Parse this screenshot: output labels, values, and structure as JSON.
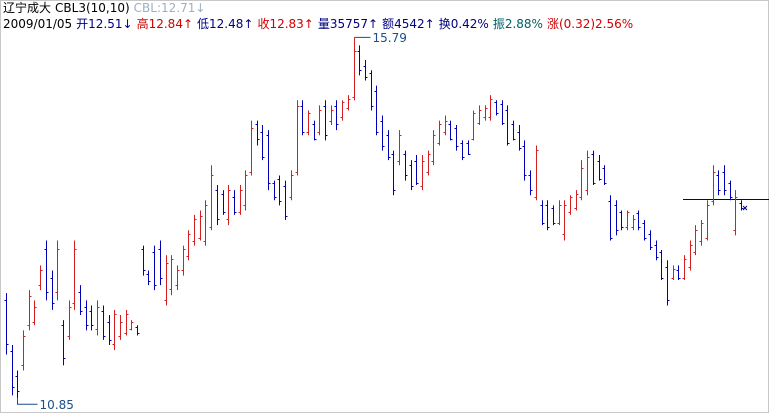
{
  "header": {
    "title": "辽宁成大",
    "indicator": "CBL3(10,10)",
    "indicator_value": "CBL:12.71↓",
    "date": "2009/01/05",
    "fields": [
      {
        "text": "开12.51↓",
        "color": "#000080"
      },
      {
        "text": "高12.84↑",
        "color": "#d00000"
      },
      {
        "text": "低12.48↑",
        "color": "#000080"
      },
      {
        "text": "收12.83↑",
        "color": "#d00000"
      },
      {
        "text": "量35757↑",
        "color": "#000080"
      },
      {
        "text": "额4542↑",
        "color": "#000080"
      },
      {
        "text": "换0.42%",
        "color": "#000080"
      },
      {
        "text": "振2.88%",
        "color": "#006060"
      },
      {
        "text": "涨(0.32)2.56%",
        "color": "#d00000"
      }
    ]
  },
  "chart_data": {
    "type": "ohlc",
    "up_color": "#d42020",
    "down_color": "#0000b4",
    "label_color": "#1a4f8a",
    "ylim": [
      10.69,
      15.85
    ],
    "ohlc": [
      [
        12.2,
        12.29,
        11.45,
        11.6
      ],
      [
        11.5,
        11.58,
        10.89,
        11.0
      ],
      [
        11.15,
        11.23,
        10.85,
        10.95
      ],
      [
        11.3,
        11.78,
        11.23,
        11.7
      ],
      [
        11.85,
        12.33,
        11.78,
        12.25
      ],
      [
        11.9,
        12.19,
        11.85,
        12.1
      ],
      [
        12.4,
        12.67,
        12.33,
        12.6
      ],
      [
        12.9,
        13.01,
        12.19,
        12.3
      ],
      [
        12.5,
        12.6,
        12.06,
        12.15
      ],
      [
        12.3,
        13.01,
        12.19,
        12.9
      ],
      [
        11.85,
        11.92,
        11.3,
        11.4
      ],
      [
        11.7,
        12.19,
        11.65,
        12.1
      ],
      [
        12.15,
        13.01,
        12.06,
        12.9
      ],
      [
        12.3,
        12.4,
        11.99,
        12.05
      ],
      [
        12.1,
        12.19,
        11.78,
        11.85
      ],
      [
        12.05,
        12.12,
        11.78,
        11.85
      ],
      [
        11.8,
        12.19,
        11.71,
        12.1
      ],
      [
        12.05,
        12.12,
        11.65,
        11.7
      ],
      [
        11.9,
        11.99,
        11.58,
        11.65
      ],
      [
        11.6,
        12.06,
        11.51,
        12.0
      ],
      [
        11.7,
        11.99,
        11.65,
        11.9
      ],
      [
        11.75,
        12.06,
        11.71,
        12.0
      ],
      [
        11.8,
        11.92,
        11.78,
        11.9
      ],
      [
        11.83,
        11.85,
        11.71,
        11.75
      ],
      [
        12.9,
        12.94,
        12.53,
        12.6
      ],
      [
        12.55,
        12.6,
        12.4,
        12.45
      ],
      [
        12.85,
        12.94,
        12.33,
        12.4
      ],
      [
        12.9,
        13.01,
        12.4,
        12.5
      ],
      [
        12.2,
        12.81,
        12.12,
        12.7
      ],
      [
        12.35,
        12.81,
        12.26,
        12.75
      ],
      [
        12.4,
        12.67,
        12.33,
        12.6
      ],
      [
        12.6,
        12.94,
        12.53,
        12.9
      ],
      [
        12.8,
        13.15,
        12.74,
        13.1
      ],
      [
        13.0,
        13.36,
        12.94,
        13.3
      ],
      [
        13.05,
        13.42,
        13.01,
        13.35
      ],
      [
        13.0,
        13.56,
        12.94,
        13.5
      ],
      [
        13.2,
        14.04,
        13.15,
        13.9
      ],
      [
        13.7,
        13.77,
        13.22,
        13.3
      ],
      [
        13.65,
        13.7,
        13.36,
        13.4
      ],
      [
        13.3,
        13.77,
        13.22,
        13.7
      ],
      [
        13.6,
        13.7,
        13.36,
        13.4
      ],
      [
        13.4,
        13.77,
        13.36,
        13.7
      ],
      [
        13.5,
        13.97,
        13.42,
        13.9
      ],
      [
        13.95,
        14.65,
        13.9,
        14.55
      ],
      [
        14.6,
        14.65,
        14.31,
        14.4
      ],
      [
        14.5,
        14.59,
        14.11,
        14.15
      ],
      [
        14.45,
        14.52,
        13.7,
        13.8
      ],
      [
        13.8,
        13.83,
        13.56,
        13.6
      ],
      [
        13.85,
        13.9,
        13.49,
        13.55
      ],
      [
        13.75,
        13.83,
        13.29,
        13.35
      ],
      [
        13.6,
        13.97,
        13.56,
        13.9
      ],
      [
        13.95,
        14.93,
        13.9,
        14.85
      ],
      [
        14.85,
        14.93,
        14.45,
        14.5
      ],
      [
        14.5,
        14.79,
        14.45,
        14.75
      ],
      [
        14.6,
        14.65,
        14.38,
        14.4
      ],
      [
        14.5,
        14.86,
        14.45,
        14.8
      ],
      [
        14.85,
        14.93,
        14.38,
        14.45
      ],
      [
        14.65,
        14.86,
        14.59,
        14.8
      ],
      [
        14.85,
        14.93,
        14.52,
        14.6
      ],
      [
        14.7,
        14.93,
        14.65,
        14.9
      ],
      [
        14.82,
        15.0,
        14.79,
        14.95
      ],
      [
        14.97,
        15.79,
        14.93,
        15.6
      ],
      [
        15.6,
        15.68,
        15.27,
        15.35
      ],
      [
        15.4,
        15.48,
        15.2,
        15.25
      ],
      [
        15.3,
        15.34,
        14.79,
        14.85
      ],
      [
        15.05,
        15.13,
        14.45,
        14.5
      ],
      [
        14.65,
        14.72,
        14.24,
        14.3
      ],
      [
        14.45,
        14.52,
        14.11,
        14.15
      ],
      [
        14.2,
        14.24,
        13.63,
        13.7
      ],
      [
        14.1,
        14.52,
        14.04,
        14.45
      ],
      [
        14.2,
        14.24,
        13.83,
        13.9
      ],
      [
        14.05,
        14.11,
        13.7,
        13.75
      ],
      [
        14.1,
        14.18,
        13.77,
        13.8
      ],
      [
        13.75,
        14.18,
        13.7,
        14.1
      ],
      [
        13.95,
        14.24,
        13.9,
        14.2
      ],
      [
        14.1,
        14.52,
        14.04,
        14.45
      ],
      [
        14.35,
        14.65,
        14.31,
        14.6
      ],
      [
        14.5,
        14.72,
        14.45,
        14.65
      ],
      [
        14.6,
        14.65,
        14.38,
        14.4
      ],
      [
        14.55,
        14.59,
        14.24,
        14.3
      ],
      [
        14.35,
        14.38,
        14.11,
        14.15
      ],
      [
        14.35,
        14.38,
        14.18,
        14.2
      ],
      [
        14.4,
        14.79,
        14.38,
        14.75
      ],
      [
        14.62,
        14.86,
        14.59,
        14.8
      ],
      [
        14.7,
        14.86,
        14.65,
        14.82
      ],
      [
        14.7,
        15.0,
        14.65,
        14.95
      ],
      [
        14.9,
        14.93,
        14.72,
        14.75
      ],
      [
        14.88,
        14.93,
        14.59,
        14.62
      ],
      [
        14.8,
        14.86,
        14.31,
        14.35
      ],
      [
        14.6,
        14.65,
        14.38,
        14.4
      ],
      [
        14.5,
        14.59,
        14.24,
        14.28
      ],
      [
        14.3,
        14.38,
        13.83,
        13.9
      ],
      [
        13.9,
        13.97,
        13.63,
        13.7
      ],
      [
        13.6,
        14.31,
        13.56,
        14.25
      ],
      [
        13.5,
        13.56,
        13.22,
        13.25
      ],
      [
        13.5,
        13.56,
        13.15,
        13.2
      ],
      [
        13.45,
        13.49,
        13.22,
        13.25
      ],
      [
        13.25,
        13.56,
        13.22,
        13.5
      ],
      [
        13.1,
        13.56,
        13.01,
        13.5
      ],
      [
        13.4,
        13.63,
        13.36,
        13.6
      ],
      [
        13.45,
        13.7,
        13.42,
        13.65
      ],
      [
        13.6,
        14.11,
        13.56,
        14.0
      ],
      [
        13.7,
        14.24,
        13.63,
        14.15
      ],
      [
        14.2,
        14.24,
        13.77,
        13.8
      ],
      [
        14.1,
        14.18,
        13.83,
        13.85
      ],
      [
        14.0,
        14.04,
        13.77,
        13.8
      ],
      [
        13.55,
        13.63,
        13.01,
        13.05
      ],
      [
        13.5,
        13.56,
        13.08,
        13.15
      ],
      [
        13.4,
        13.42,
        13.15,
        13.2
      ],
      [
        13.2,
        13.42,
        13.15,
        13.4
      ],
      [
        13.2,
        13.36,
        13.15,
        13.3
      ],
      [
        13.38,
        13.42,
        13.15,
        13.2
      ],
      [
        13.25,
        13.29,
        13.01,
        13.05
      ],
      [
        13.1,
        13.15,
        12.88,
        12.92
      ],
      [
        12.95,
        13.01,
        12.74,
        12.78
      ],
      [
        12.85,
        12.88,
        12.47,
        12.5
      ],
      [
        12.65,
        12.74,
        12.12,
        12.2
      ],
      [
        12.5,
        12.67,
        12.47,
        12.62
      ],
      [
        12.6,
        12.67,
        12.47,
        12.5
      ],
      [
        12.5,
        12.81,
        12.47,
        12.75
      ],
      [
        12.65,
        13.01,
        12.6,
        12.95
      ],
      [
        12.85,
        13.22,
        12.81,
        13.15
      ],
      [
        13.0,
        13.29,
        12.94,
        13.25
      ],
      [
        13.05,
        13.56,
        13.01,
        13.5
      ],
      [
        13.55,
        14.04,
        13.49,
        13.95
      ],
      [
        13.9,
        13.97,
        13.63,
        13.7
      ],
      [
        13.95,
        14.04,
        13.63,
        13.7
      ],
      [
        13.8,
        13.83,
        13.56,
        13.6
      ],
      [
        13.15,
        13.7,
        13.08,
        13.6
      ],
      [
        13.52,
        13.56,
        13.42,
        13.45
      ]
    ]
  }
}
